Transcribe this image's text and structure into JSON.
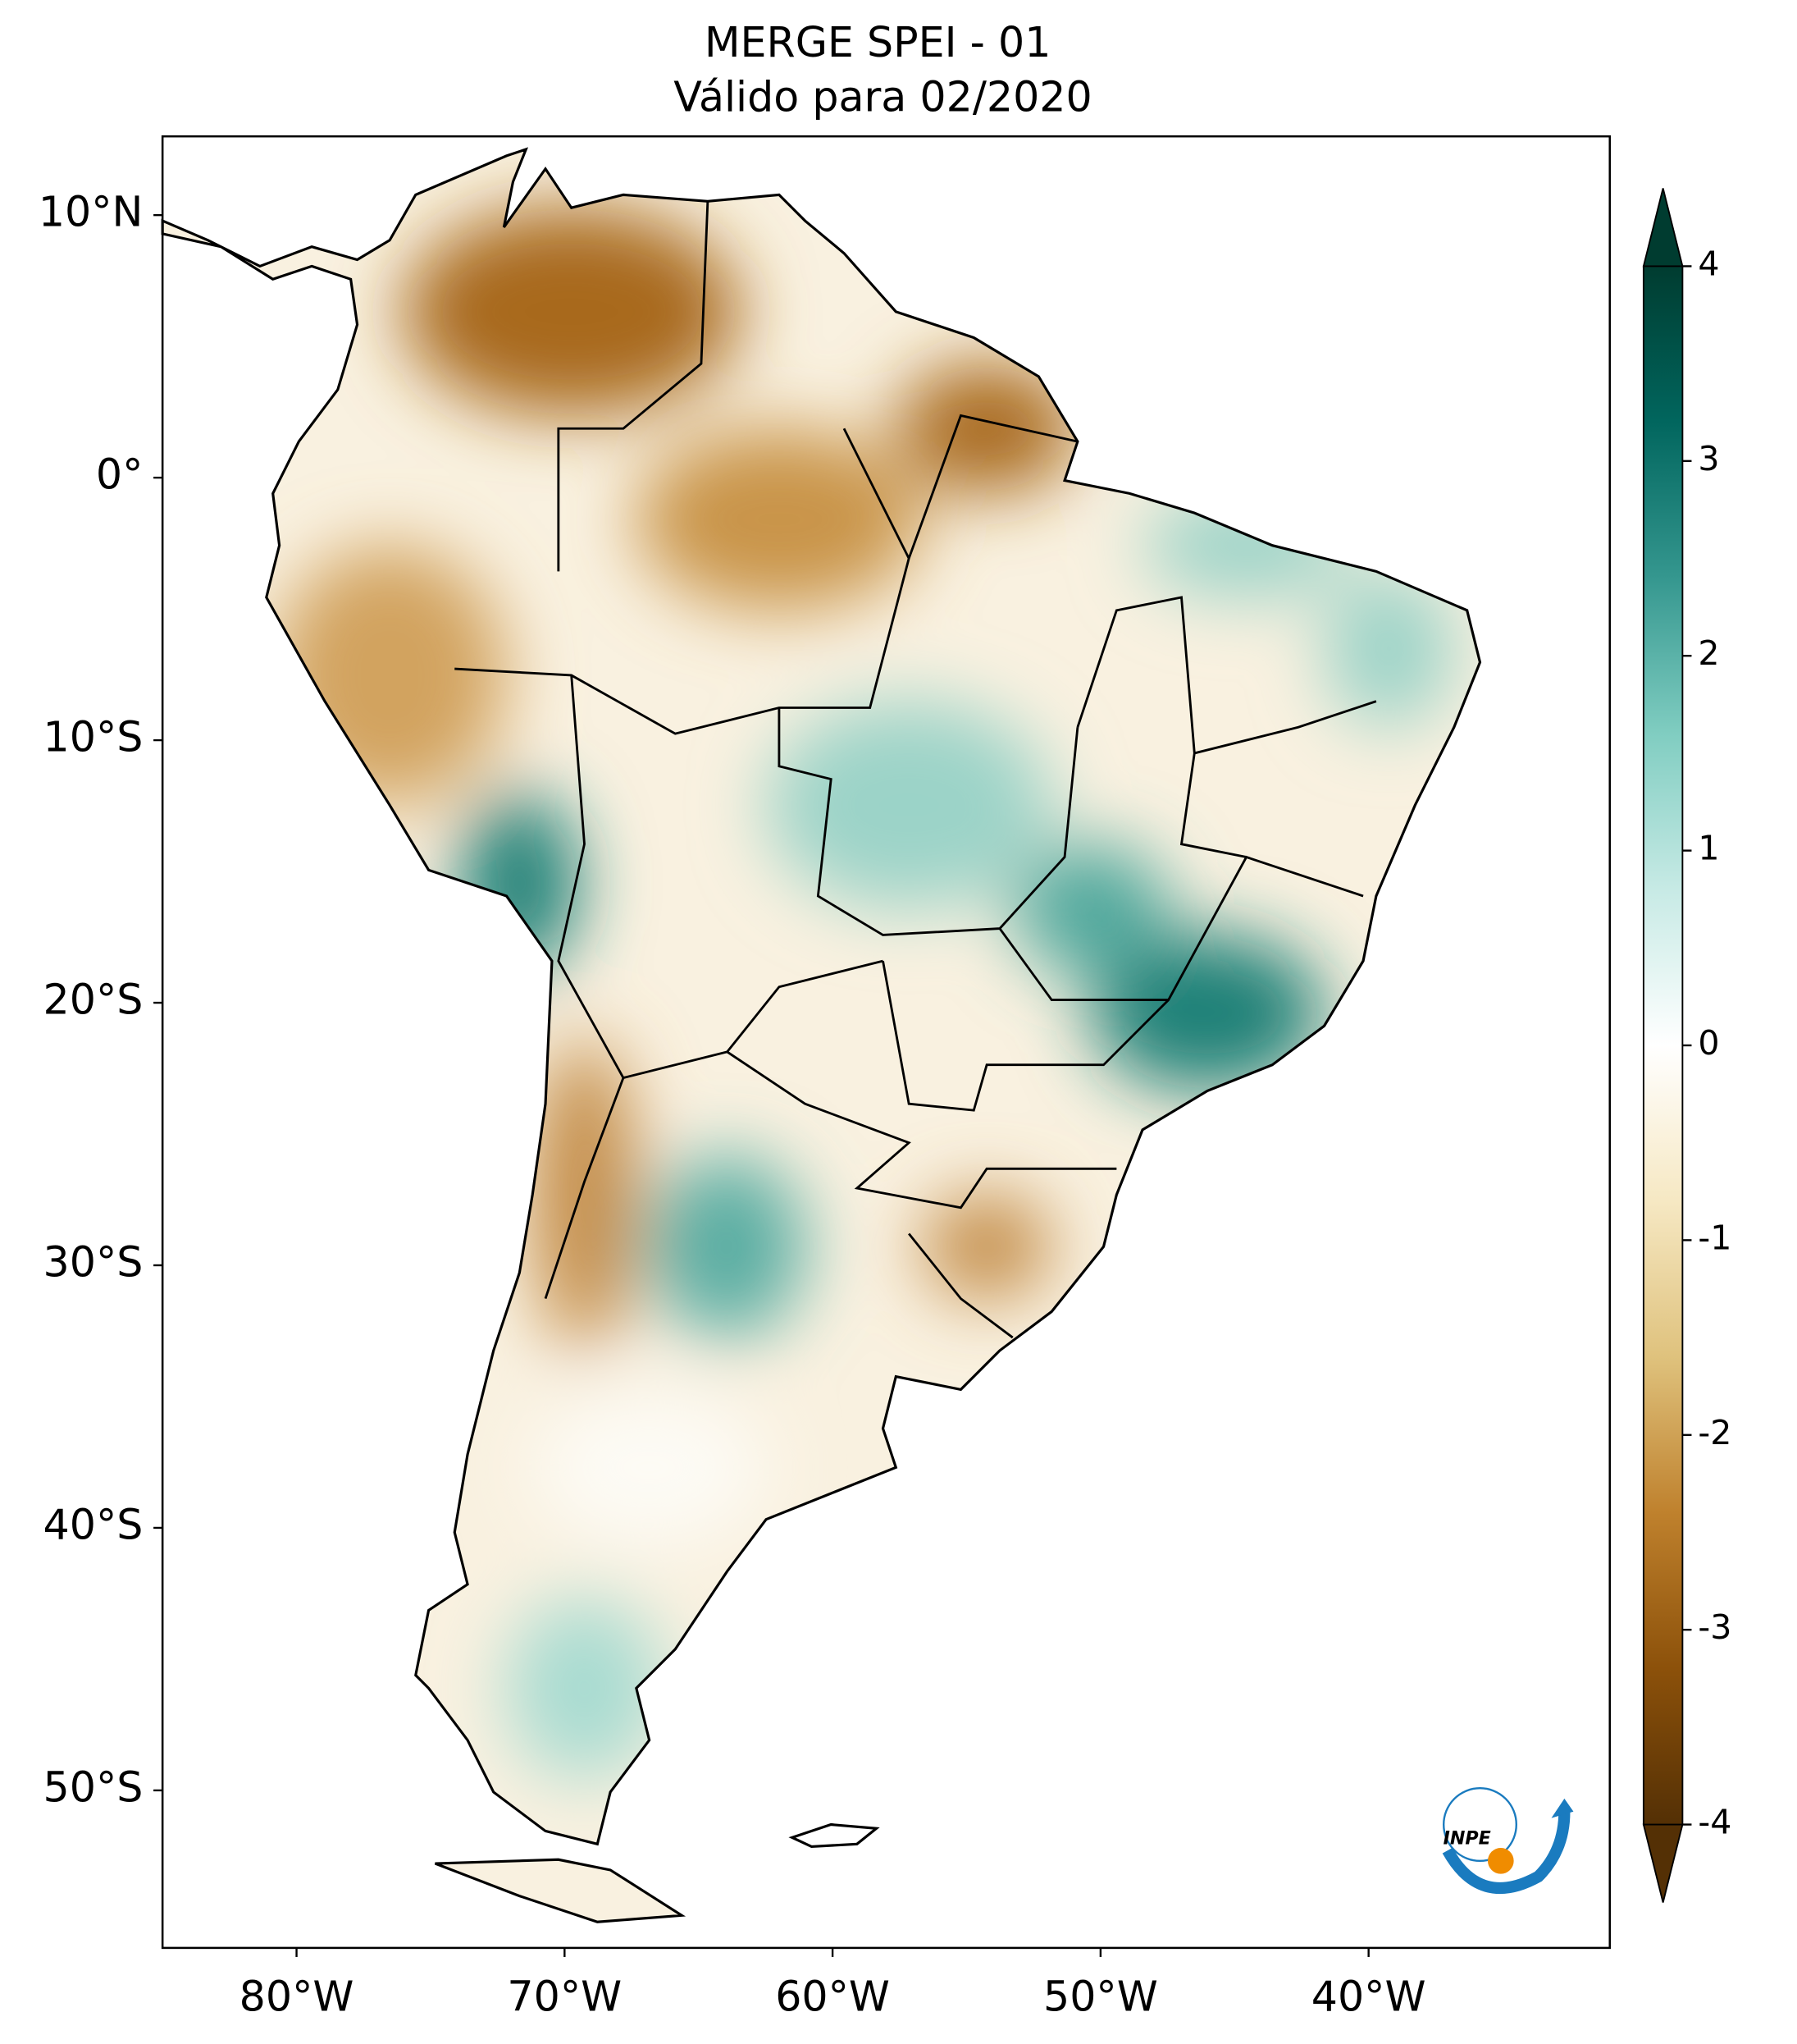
{
  "title": "MERGE   SPEI - 01",
  "subtitle": "Válido para 02/2020",
  "map": {
    "xlim": [
      -85,
      -31
    ],
    "ylim": [
      -56,
      13
    ],
    "xticks": [
      {
        "value": -80,
        "label": "80°W"
      },
      {
        "value": -70,
        "label": "70°W"
      },
      {
        "value": -60,
        "label": "60°W"
      },
      {
        "value": -50,
        "label": "50°W"
      },
      {
        "value": -40,
        "label": "40°W"
      }
    ],
    "yticks": [
      {
        "value": 10,
        "label": "10°N"
      },
      {
        "value": 0,
        "label": "0°"
      },
      {
        "value": -10,
        "label": "10°S"
      },
      {
        "value": -20,
        "label": "20°S"
      },
      {
        "value": -30,
        "label": "30°S"
      },
      {
        "value": -40,
        "label": "40°S"
      },
      {
        "value": -50,
        "label": "50°S"
      }
    ]
  },
  "colorbar": {
    "range": [
      -4,
      4
    ],
    "ticks": [
      4,
      3,
      2,
      1,
      0,
      -1,
      -2,
      -3,
      -4
    ],
    "colors": [
      "#543005",
      "#8c510a",
      "#bf812d",
      "#dfc27d",
      "#f6e8c3",
      "#ffffff",
      "#c7eae5",
      "#80cdc1",
      "#35978f",
      "#01665e",
      "#003c30"
    ]
  },
  "logo": "INPE"
}
